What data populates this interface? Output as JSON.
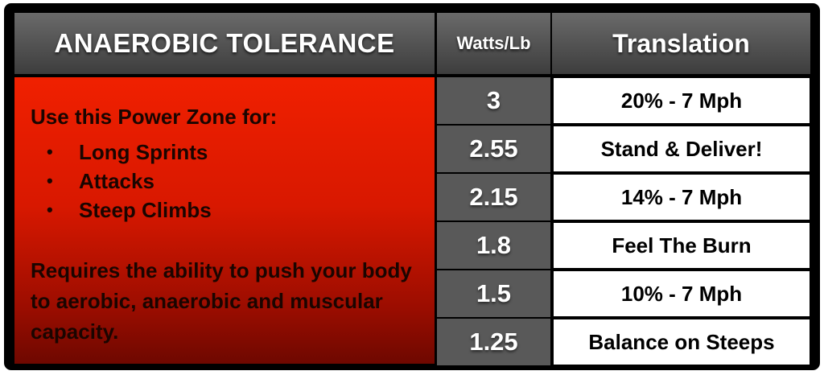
{
  "header": {
    "title": "ANAEROBIC TOLERANCE",
    "watts_label": "Watts/Lb",
    "translation_label": "Translation"
  },
  "zone": {
    "heading": "Use this Power Zone for:",
    "uses": [
      "Long Sprints",
      "Attacks",
      "Steep Climbs"
    ],
    "bullet": "•",
    "note": "Requires the ability to push your body to aerobic, anaerobic and muscular capacity."
  },
  "rows": [
    {
      "watts": "3",
      "translation": "20% - 7 Mph"
    },
    {
      "watts": "2.55",
      "translation": "Stand & Deliver!"
    },
    {
      "watts": "2.15",
      "translation": "14% - 7 Mph"
    },
    {
      "watts": "1.8",
      "translation": "Feel The Burn"
    },
    {
      "watts": "1.5",
      "translation": "10% - 7 Mph"
    },
    {
      "watts": "1.25",
      "translation": "Balance on Steeps"
    }
  ],
  "colors": {
    "zone_red": "#d81800",
    "header_gray": "#4f4f4f",
    "watts_gray": "#595959",
    "frame": "#000000"
  }
}
